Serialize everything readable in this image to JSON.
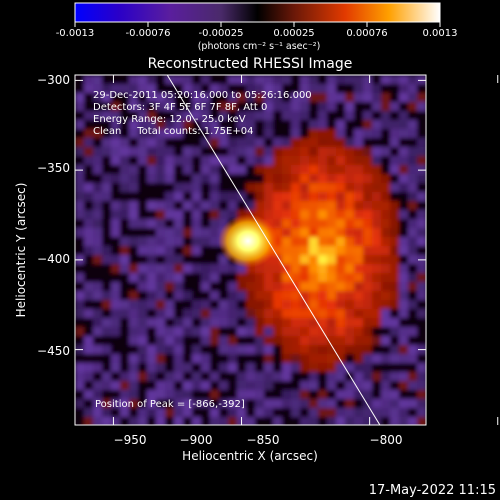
{
  "colorbar": {
    "ticks": [
      "-0.0013",
      "-0.00076",
      "-0.00025",
      "0.00025",
      "0.00076",
      "0.0013"
    ],
    "units": "(photons cm⁻² s⁻¹ asec⁻²)"
  },
  "chart_data": {
    "type": "heatmap",
    "title": "Reconstructed RHESSI Image",
    "xlabel": "Heliocentric X (arcsec)",
    "ylabel": "Heliocentric Y (arcsec)",
    "xlim": [
      -965,
      -828
    ],
    "ylim": [
      -492,
      -297
    ],
    "x_ticks": [
      -950,
      -900,
      -850,
      -800
    ],
    "x_tick_labels": [
      "−950",
      "−900",
      "−850",
      "−800"
    ],
    "y_ticks": [
      -300,
      -350,
      -400,
      -450
    ],
    "y_tick_labels": [
      "−300",
      "−350",
      "−400",
      "−450"
    ],
    "colormap": "RHESSI flux diverging: blue-purple (negative) to black to red-orange-yellow-white (positive)",
    "color_range": [
      -0.0013,
      0.0013
    ],
    "peak": [
      -866,
      -392
    ],
    "limb_line": {
      "from": [
        -929,
        -297
      ],
      "to": [
        -846,
        -492
      ],
      "color": "#ffffff"
    },
    "annotations": [
      "29-Dec-2011 05:20:16.000 to 05:26:16.000",
      "Detectors: 3F 4F 5F 6F 7F 8F, Att 0",
      "Energy Range: 12.0 - 25.0 keV",
      "Clean     Total counts: 1.75E+04"
    ],
    "peak_label": "Position of Peak = [-866,-392]",
    "grid": false,
    "legend": "none"
  },
  "footer": {
    "timestamp": "17-May-2022 11:15"
  },
  "colors": {
    "background": "#000000",
    "negative": "#4a2e92",
    "positive_core": "#ffffff",
    "limb": "#ffffff"
  }
}
